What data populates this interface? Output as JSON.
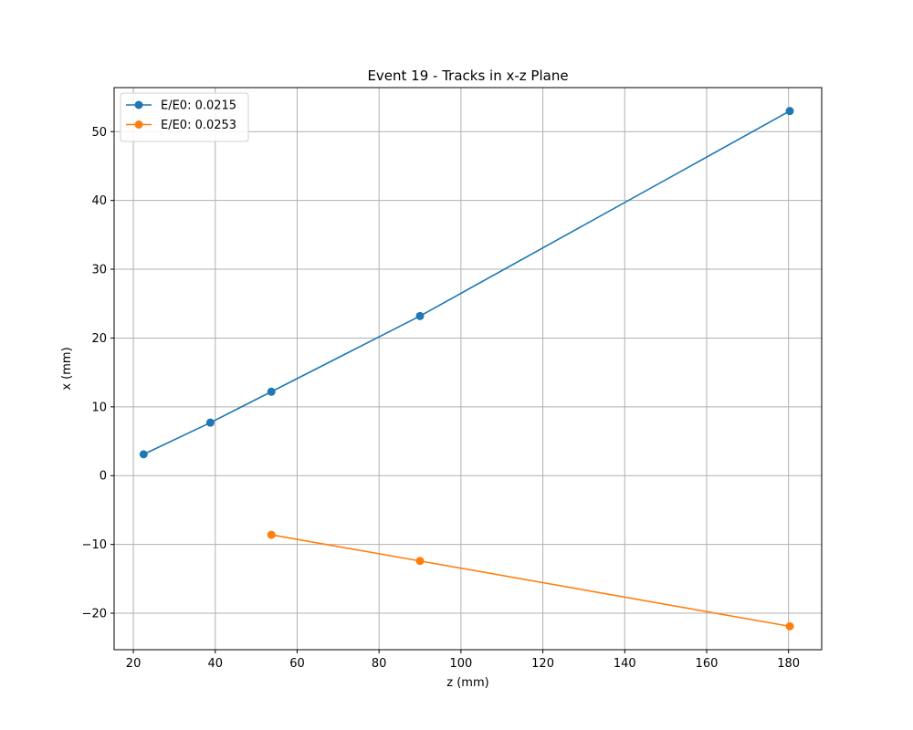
{
  "chart_data": {
    "type": "line",
    "title": "Event 19 - Tracks in x-z Plane",
    "xlabel": "z (mm)",
    "ylabel": "x (mm)",
    "xlim": [
      15.3,
      188.1
    ],
    "ylim": [
      -25.3,
      56.4
    ],
    "xticks": [
      20,
      40,
      60,
      80,
      100,
      120,
      140,
      160,
      180
    ],
    "yticks": [
      -20,
      -10,
      0,
      10,
      20,
      30,
      40,
      50
    ],
    "grid": true,
    "legend_position": "top-left",
    "series": [
      {
        "name": "E/E0: 0.0215",
        "color": "#1f77b4",
        "marker": "circle",
        "x": [
          22.5,
          38.8,
          53.7,
          90.0,
          180.3
        ],
        "y": [
          3.1,
          7.7,
          12.2,
          23.2,
          53.0
        ]
      },
      {
        "name": "E/E0: 0.0253",
        "color": "#ff7f0e",
        "marker": "circle",
        "x": [
          53.7,
          90.0,
          180.3
        ],
        "y": [
          -8.6,
          -12.4,
          -21.9
        ]
      }
    ]
  }
}
